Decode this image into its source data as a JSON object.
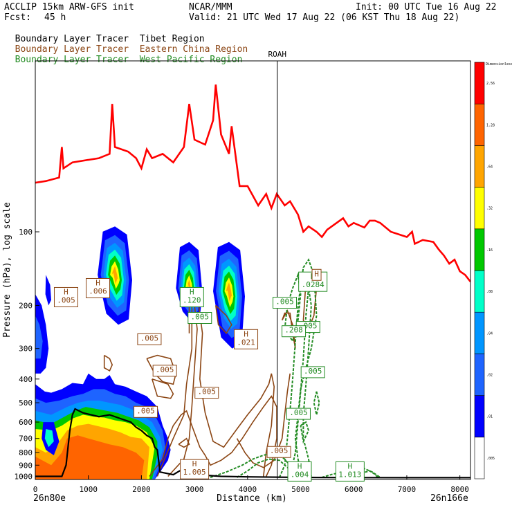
{
  "header": {
    "model": "ACCLIP 15km ARW-GFS init",
    "org": "NCAR/MMM",
    "init": "Init: 00 UTC Tue 16 Aug 22",
    "fcst_label": "Fcst:",
    "fcst_value": "45 h",
    "valid": "Valid: 21 UTC Wed 17 Aug 22 (06 KST Thu 18 Aug 22)"
  },
  "tracers": [
    {
      "prefix": "Boundary Layer Tracer",
      "region": "Tibet Region",
      "color": "#000000"
    },
    {
      "prefix": "Boundary Layer Tracer",
      "region": "Eastern China Region",
      "color": "#8B4513"
    },
    {
      "prefix": "Boundary Layer Tracer",
      "region": "West Pacific Region",
      "color": "#228B22"
    }
  ],
  "chart_data": {
    "type": "cross-section",
    "xlabel": "Distance (km)",
    "ylabel": "Pressure (hPa), log scale",
    "y_scale": "log",
    "xlim": [
      0,
      8200
    ],
    "ylim": [
      1030,
      20
    ],
    "x_ticks": [
      0,
      1000,
      2000,
      3000,
      4000,
      5000,
      6000,
      7000,
      8000
    ],
    "y_ticks": [
      100,
      200,
      300,
      400,
      500,
      600,
      700,
      800,
      900,
      1000
    ],
    "left_end": "26n80e",
    "right_end": "26n166e",
    "marker": {
      "label": "ROAH",
      "x": 4560
    },
    "tropopause": {
      "color": "#ff0000",
      "x": [
        0,
        200,
        450,
        500,
        530,
        700,
        1200,
        1400,
        1450,
        1500,
        1750,
        1900,
        2000,
        2100,
        2200,
        2400,
        2600,
        2800,
        2900,
        3000,
        3200,
        3350,
        3400,
        3500,
        3650,
        3700,
        3850,
        4000,
        4200,
        4350,
        4450,
        4550,
        4700,
        4800,
        4950,
        5050,
        5150,
        5300,
        5400,
        5500,
        5800,
        5900,
        6000,
        6200,
        6300,
        6400,
        6500,
        6700,
        7000,
        7100,
        7150,
        7300,
        7500,
        7600,
        7700,
        7800,
        7900,
        8000,
        8100,
        8200
      ],
      "p": [
        63,
        62,
        60,
        45,
        55,
        52,
        50,
        48,
        30,
        45,
        47,
        50,
        55,
        46,
        50,
        48,
        52,
        45,
        30,
        42,
        44,
        35,
        25,
        40,
        48,
        37,
        65,
        65,
        78,
        70,
        80,
        70,
        78,
        75,
        85,
        100,
        95,
        100,
        105,
        98,
        88,
        95,
        92,
        96,
        90,
        90,
        92,
        100,
        105,
        100,
        112,
        108,
        110,
        118,
        125,
        135,
        130,
        145,
        150,
        160
      ]
    },
    "terrain": {
      "x": [
        0,
        300,
        500,
        580,
        650,
        700,
        750,
        900,
        1200,
        1400,
        1600,
        1800,
        1900,
        2000,
        2100,
        2200,
        2250,
        2300,
        2350,
        2600,
        2700,
        2800,
        2900,
        2950,
        3000,
        3200,
        3500,
        4000,
        5000,
        6000,
        7000,
        8200
      ],
      "p": [
        1000,
        1000,
        1000,
        900,
        650,
        560,
        530,
        550,
        570,
        560,
        580,
        600,
        630,
        650,
        680,
        700,
        760,
        780,
        960,
        985,
        955,
        930,
        885,
        900,
        950,
        990,
        1000,
        1005,
        1010,
        1012,
        1013,
        1013
      ]
    },
    "colorbar": {
      "title": "Dimensionless",
      "labels": [
        ".005",
        ".01",
        ".02",
        ".04",
        ".08",
        ".16",
        ".32",
        ".64",
        "1.28",
        "2.56"
      ],
      "colors": [
        "#ffffff",
        "#0000ff",
        "#1e64ff",
        "#0096ff",
        "#00ffc8",
        "#00c800",
        "#ffff00",
        "#ffa500",
        "#ff6400",
        "#ff0000"
      ]
    },
    "contour_labels": [
      {
        "text": "H\n.005",
        "x": 580,
        "p": 185,
        "color": "#8B4513"
      },
      {
        "text": "H\n.006",
        "x": 1180,
        "p": 170,
        "color": "#8B4513"
      },
      {
        "text": "H\n.120",
        "x": 2950,
        "p": 185,
        "color": "#228B22"
      },
      {
        "text": ".005",
        "x": 3100,
        "p": 225,
        "color": "#228B22"
      },
      {
        "text": ".005",
        "x": 2150,
        "p": 275,
        "color": "#8B4513"
      },
      {
        "text": ".005",
        "x": 2440,
        "p": 370,
        "color": "#8B4513"
      },
      {
        "text": "H\n.021",
        "x": 3970,
        "p": 275,
        "color": "#8B4513"
      },
      {
        "text": "H\n.0284",
        "x": 5230,
        "p": 160,
        "color": "#228B22"
      },
      {
        "text": "H",
        "x": 5300,
        "p": 150,
        "color": "#8B4513"
      },
      {
        "text": ".005",
        "x": 4700,
        "p": 195,
        "color": "#228B22"
      },
      {
        "text": ".005",
        "x": 5140,
        "p": 245,
        "color": "#228B22"
      },
      {
        "text": ".208",
        "x": 4870,
        "p": 255,
        "color": "#228B22"
      },
      {
        "text": ".005",
        "x": 5230,
        "p": 375,
        "color": "#228B22"
      },
      {
        "text": ".005",
        "x": 3230,
        "p": 455,
        "color": "#8B4513"
      },
      {
        "text": ".005",
        "x": 2080,
        "p": 545,
        "color": "#8B4513"
      },
      {
        "text": ".005",
        "x": 4960,
        "p": 555,
        "color": "#228B22"
      },
      {
        "text": ".005",
        "x": 4590,
        "p": 795,
        "color": "#8B4513"
      },
      {
        "text": "H\n1.005",
        "x": 3000,
        "p": 935,
        "color": "#8B4513"
      },
      {
        "text": "H\n.004",
        "x": 4980,
        "p": 955,
        "color": "#228B22"
      },
      {
        "text": "H\n1.013",
        "x": 5930,
        "p": 955,
        "color": "#228B22"
      }
    ]
  }
}
